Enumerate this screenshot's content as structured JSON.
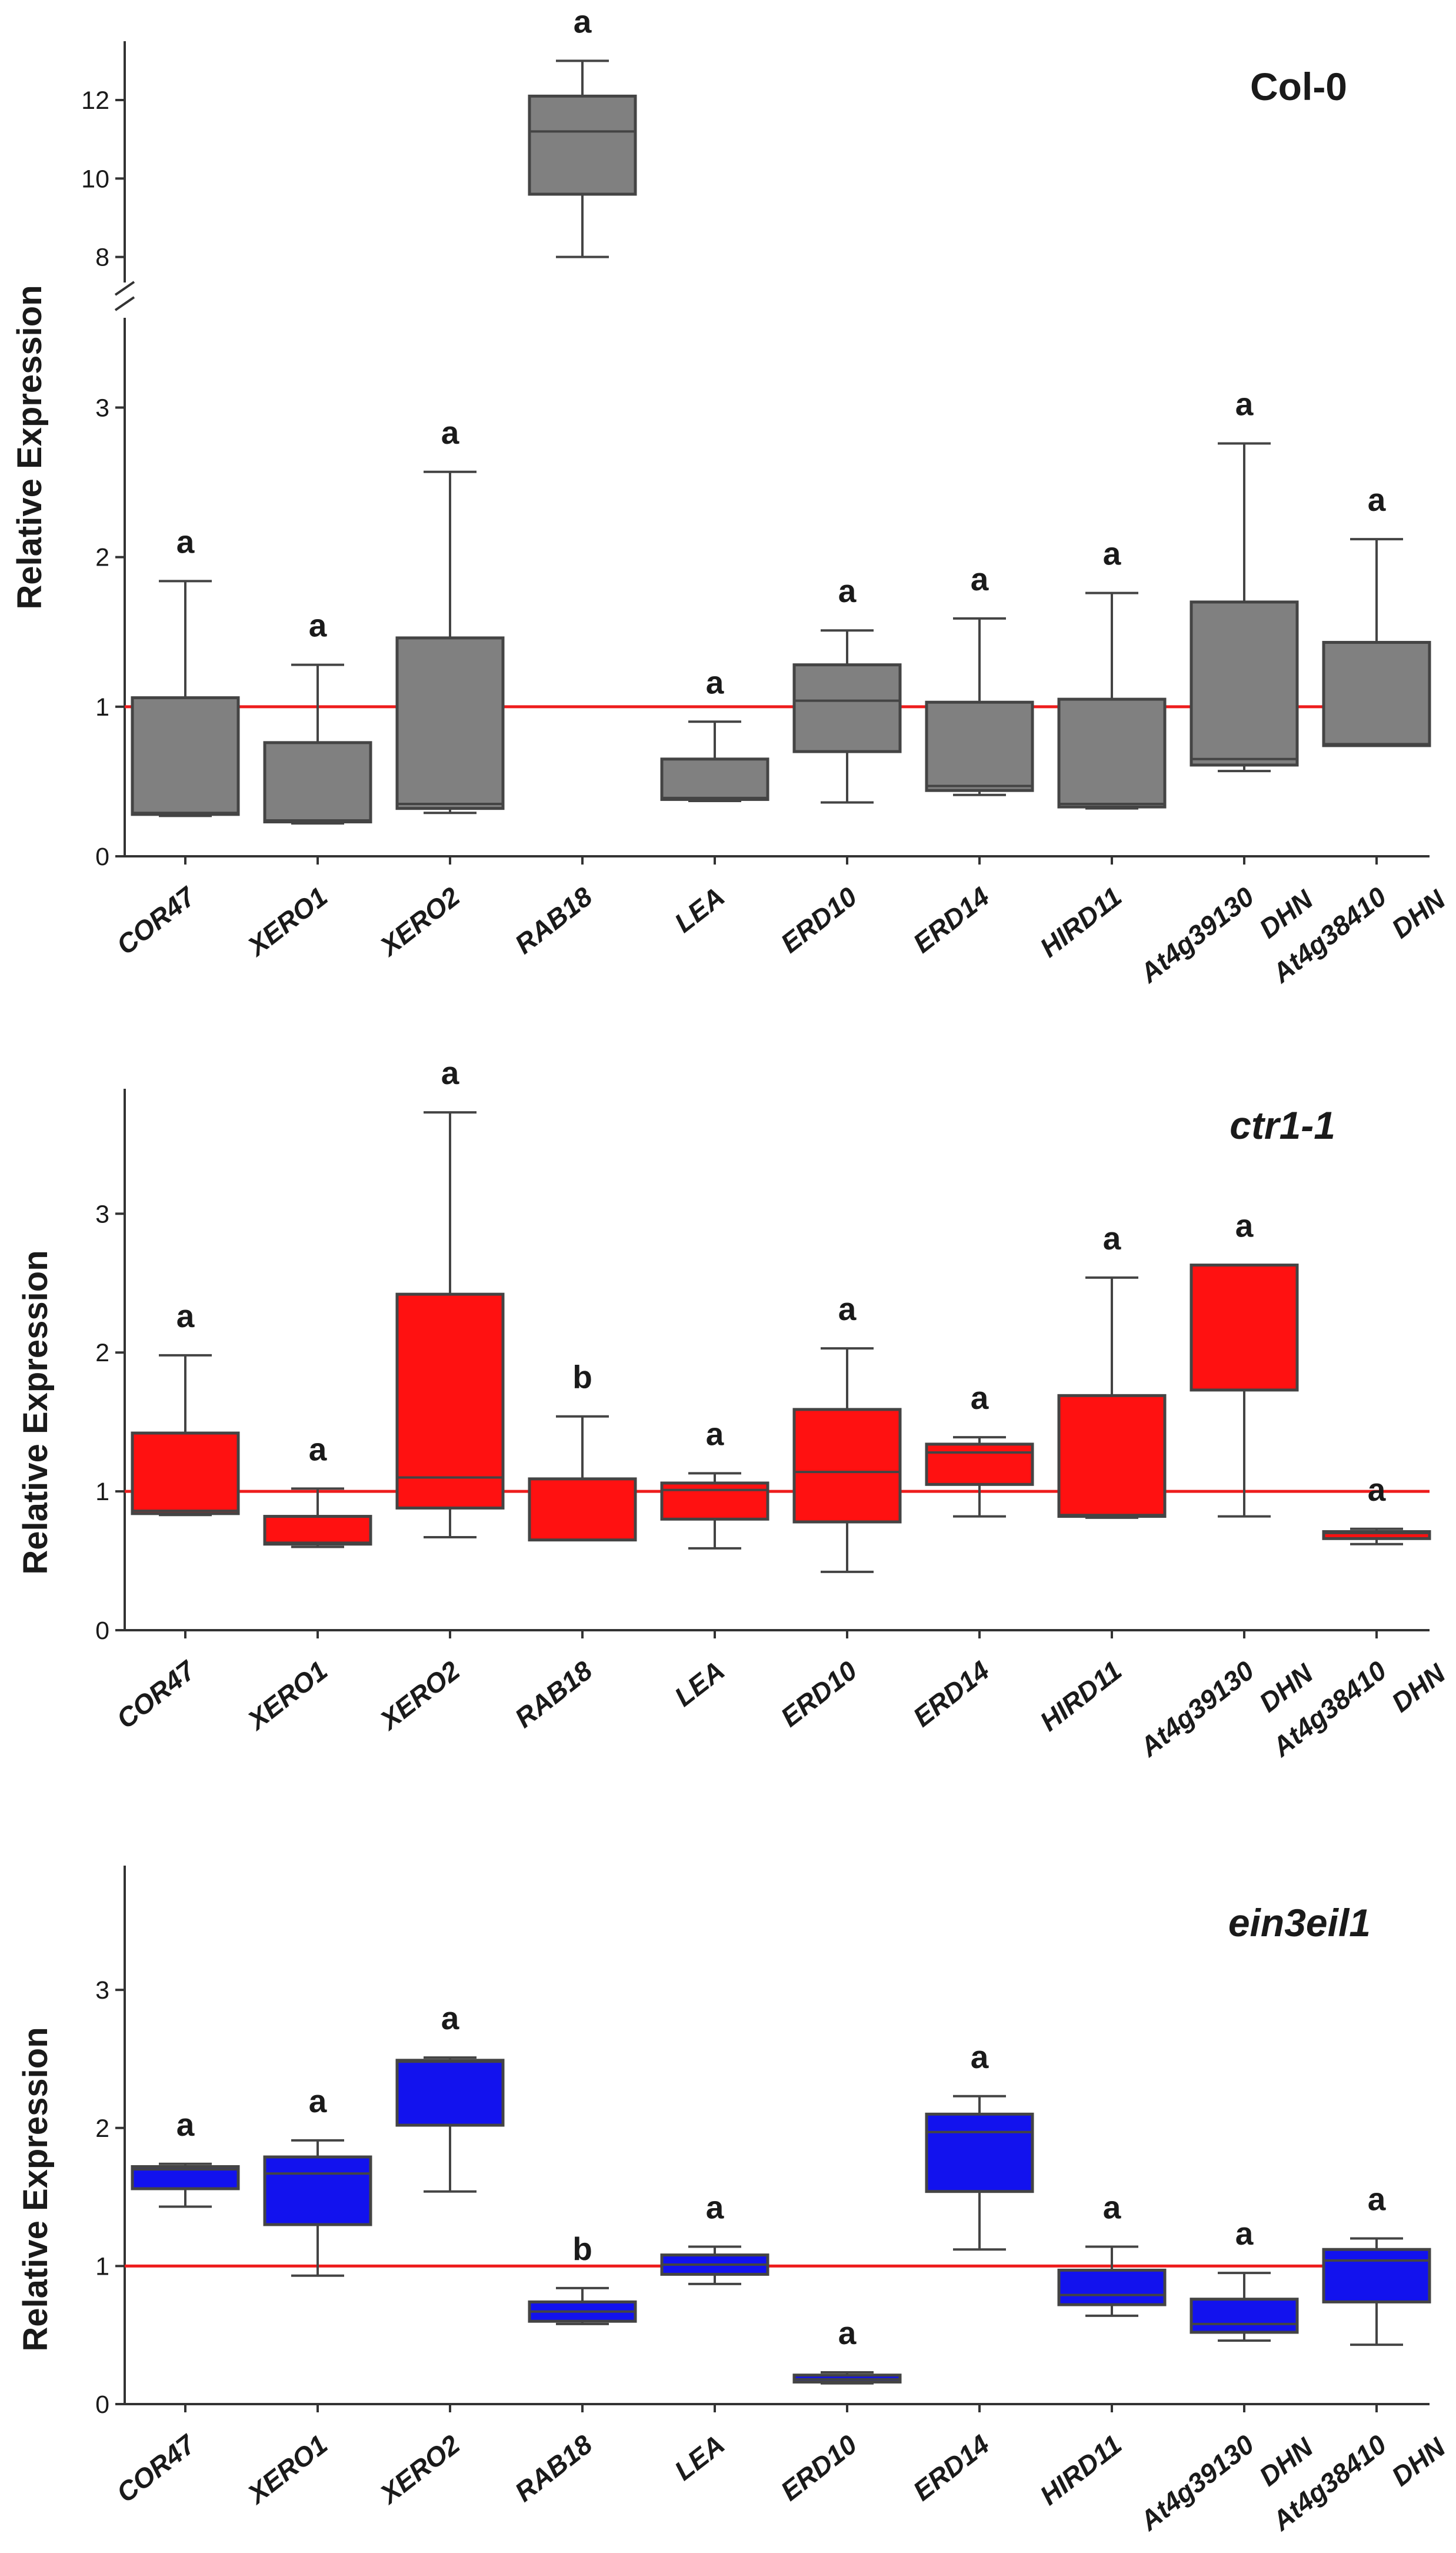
{
  "figure": {
    "colors": {
      "ref_line": "#ee1c1c",
      "axis": "#333333",
      "box_edge": "#444444",
      "text": "#1a1a1a"
    }
  },
  "chart_data": [
    {
      "type": "box",
      "title": "Col-0",
      "title_italic": false,
      "ylabel": "Relative Expression",
      "reference_line": 1,
      "axis_break": true,
      "ylim_lower": [
        0,
        3.6
      ],
      "ylim_upper": [
        7.5,
        13.5
      ],
      "yticks_lower": [
        "0",
        "1",
        "2",
        "3"
      ],
      "yticks_upper": [
        "8",
        "10",
        "12"
      ],
      "box_color": "#808080",
      "categories": [
        {
          "label": "COR47",
          "label2": "",
          "sig": "a",
          "whisker_low": 0.27,
          "q1": 0.28,
          "median": 0.29,
          "q3": 1.06,
          "whisker_high": 1.84
        },
        {
          "label": "XERO1",
          "label2": "",
          "sig": "a",
          "whisker_low": 0.22,
          "q1": 0.23,
          "median": 0.24,
          "q3": 0.76,
          "whisker_high": 1.28
        },
        {
          "label": "XERO2",
          "label2": "",
          "sig": "a",
          "whisker_low": 0.29,
          "q1": 0.32,
          "median": 0.35,
          "q3": 1.46,
          "whisker_high": 2.57
        },
        {
          "label": "RAB18",
          "label2": "",
          "sig": "a",
          "whisker_low": 8.0,
          "q1": 9.6,
          "median": 11.2,
          "q3": 12.1,
          "whisker_high": 13.0
        },
        {
          "label": "LEA",
          "label2": "",
          "sig": "a",
          "whisker_low": 0.37,
          "q1": 0.38,
          "median": 0.39,
          "q3": 0.65,
          "whisker_high": 0.9
        },
        {
          "label": "ERD10",
          "label2": "",
          "sig": "a",
          "whisker_low": 0.36,
          "q1": 0.7,
          "median": 1.04,
          "q3": 1.28,
          "whisker_high": 1.51
        },
        {
          "label": "ERD14",
          "label2": "",
          "sig": "a",
          "whisker_low": 0.41,
          "q1": 0.44,
          "median": 0.47,
          "q3": 1.03,
          "whisker_high": 1.59
        },
        {
          "label": "HIRD11",
          "label2": "",
          "sig": "a",
          "whisker_low": 0.32,
          "q1": 0.33,
          "median": 0.35,
          "q3": 1.05,
          "whisker_high": 1.76
        },
        {
          "label": "At4g39130",
          "label2": "DHN",
          "sig": "a",
          "whisker_low": 0.57,
          "q1": 0.61,
          "median": 0.65,
          "q3": 1.7,
          "whisker_high": 2.76
        },
        {
          "label": "At4g38410",
          "label2": "DHN",
          "sig": "a",
          "whisker_low": 0.74,
          "q1": 0.74,
          "median": 0.75,
          "q3": 1.43,
          "whisker_high": 2.12
        }
      ]
    },
    {
      "type": "box",
      "title": "ctr1-1",
      "title_italic": true,
      "ylabel": "Relative Expression",
      "reference_line": 1,
      "axis_break": false,
      "ylim": [
        0,
        3.9
      ],
      "yticks": [
        "0",
        "1",
        "2",
        "3"
      ],
      "box_color": "#ff1111",
      "categories": [
        {
          "label": "COR47",
          "label2": "",
          "sig": "a",
          "whisker_low": 0.83,
          "q1": 0.84,
          "median": 0.86,
          "q3": 1.42,
          "whisker_high": 1.98
        },
        {
          "label": "XERO1",
          "label2": "",
          "sig": "a",
          "whisker_low": 0.6,
          "q1": 0.62,
          "median": 0.63,
          "q3": 0.82,
          "whisker_high": 1.02
        },
        {
          "label": "XERO2",
          "label2": "",
          "sig": "a",
          "whisker_low": 0.67,
          "q1": 0.88,
          "median": 1.1,
          "q3": 2.42,
          "whisker_high": 3.73
        },
        {
          "label": "RAB18",
          "label2": "",
          "sig": "b",
          "whisker_low": 0.65,
          "q1": 0.65,
          "median": 1.09,
          "q3": 1.09,
          "whisker_high": 1.54
        },
        {
          "label": "LEA",
          "label2": "",
          "sig": "a",
          "whisker_low": 0.59,
          "q1": 0.8,
          "median": 1.01,
          "q3": 1.06,
          "whisker_high": 1.13
        },
        {
          "label": "ERD10",
          "label2": "",
          "sig": "a",
          "whisker_low": 0.42,
          "q1": 0.78,
          "median": 1.14,
          "q3": 1.59,
          "whisker_high": 2.03
        },
        {
          "label": "ERD14",
          "label2": "",
          "sig": "a",
          "whisker_low": 0.82,
          "q1": 1.05,
          "median": 1.28,
          "q3": 1.34,
          "whisker_high": 1.39
        },
        {
          "label": "HIRD11",
          "label2": "",
          "sig": "a",
          "whisker_low": 0.81,
          "q1": 0.82,
          "median": 0.83,
          "q3": 1.69,
          "whisker_high": 2.54
        },
        {
          "label": "At4g39130",
          "label2": "DHN",
          "sig": "a",
          "whisker_low": 0.82,
          "q1": 1.73,
          "median": 2.63,
          "q3": 2.63,
          "whisker_high": 2.63
        },
        {
          "label": "At4g38410",
          "label2": "DHN",
          "sig": "a",
          "whisker_low": 0.62,
          "q1": 0.66,
          "median": 0.7,
          "q3": 0.71,
          "whisker_high": 0.73
        }
      ]
    },
    {
      "type": "box",
      "title": "ein3eil1",
      "title_italic": true,
      "ylabel": "Relative Expression",
      "reference_line": 1,
      "axis_break": false,
      "ylim": [
        0,
        3.9
      ],
      "yticks": [
        "0",
        "1",
        "2",
        "3"
      ],
      "box_color": "#1212ee",
      "categories": [
        {
          "label": "COR47",
          "label2": "",
          "sig": "a",
          "whisker_low": 1.43,
          "q1": 1.56,
          "median": 1.7,
          "q3": 1.72,
          "whisker_high": 1.74
        },
        {
          "label": "XERO1",
          "label2": "",
          "sig": "a",
          "whisker_low": 0.93,
          "q1": 1.3,
          "median": 1.67,
          "q3": 1.79,
          "whisker_high": 1.91
        },
        {
          "label": "XERO2",
          "label2": "",
          "sig": "a",
          "whisker_low": 1.54,
          "q1": 2.02,
          "median": 2.48,
          "q3": 2.49,
          "whisker_high": 2.51
        },
        {
          "label": "RAB18",
          "label2": "",
          "sig": "b",
          "whisker_low": 0.58,
          "q1": 0.6,
          "median": 0.67,
          "q3": 0.74,
          "whisker_high": 0.84
        },
        {
          "label": "LEA",
          "label2": "",
          "sig": "a",
          "whisker_low": 0.87,
          "q1": 0.94,
          "median": 1.01,
          "q3": 1.08,
          "whisker_high": 1.14
        },
        {
          "label": "ERD10",
          "label2": "",
          "sig": "a",
          "whisker_low": 0.15,
          "q1": 0.16,
          "median": 0.18,
          "q3": 0.21,
          "whisker_high": 0.23
        },
        {
          "label": "ERD14",
          "label2": "",
          "sig": "a",
          "whisker_low": 1.12,
          "q1": 1.54,
          "median": 1.97,
          "q3": 2.1,
          "whisker_high": 2.23
        },
        {
          "label": "HIRD11",
          "label2": "",
          "sig": "a",
          "whisker_low": 0.64,
          "q1": 0.72,
          "median": 0.79,
          "q3": 0.97,
          "whisker_high": 1.14
        },
        {
          "label": "At4g39130",
          "label2": "DHN",
          "sig": "a",
          "whisker_low": 0.46,
          "q1": 0.52,
          "median": 0.58,
          "q3": 0.76,
          "whisker_high": 0.95
        },
        {
          "label": "At4g38410",
          "label2": "DHN",
          "sig": "a",
          "whisker_low": 0.43,
          "q1": 0.74,
          "median": 1.04,
          "q3": 1.12,
          "whisker_high": 1.2
        }
      ]
    }
  ]
}
